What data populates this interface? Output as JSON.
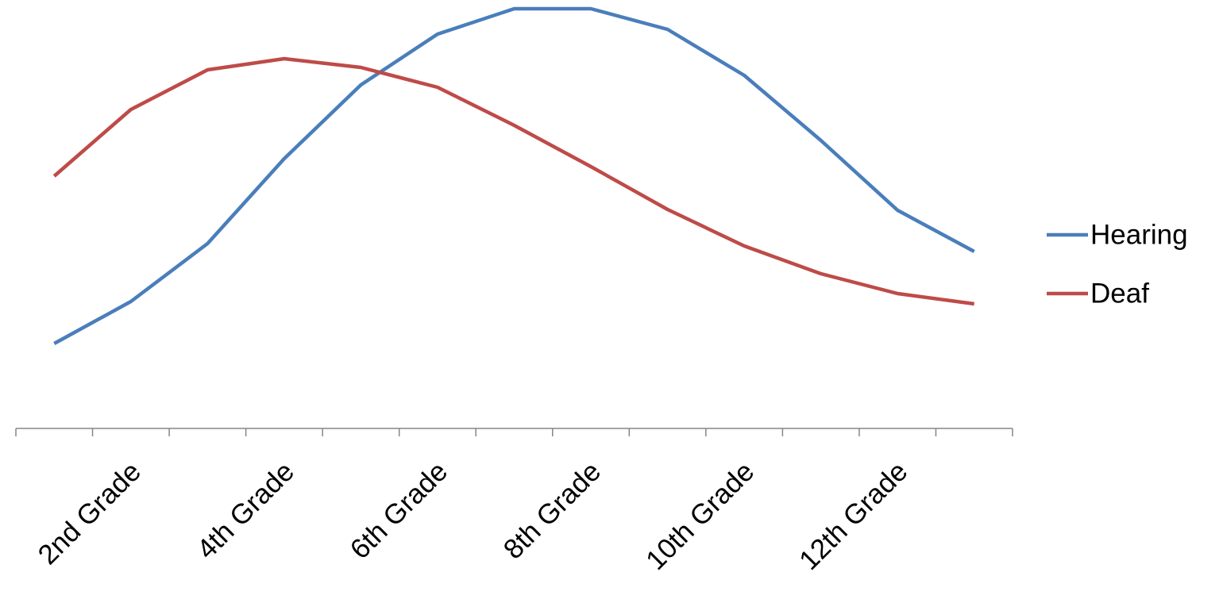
{
  "chart_data": {
    "type": "line",
    "categories": [
      null,
      "2nd Grade",
      null,
      "4th Grade",
      null,
      "6th Grade",
      null,
      "8th Grade",
      null,
      "10th Grade",
      null,
      "12th Grade",
      null
    ],
    "series": [
      {
        "name": "Hearing",
        "color": "#4a7ebb",
        "values": [
          107,
          160,
          233,
          340,
          433,
          497,
          529,
          529,
          503,
          445,
          363,
          275,
          223
        ]
      },
      {
        "name": "Deaf",
        "color": "#be4b48",
        "values": [
          318,
          402,
          452,
          466,
          455,
          430,
          382,
          330,
          276,
          230,
          195,
          170,
          157
        ]
      }
    ],
    "ylim": [
      0,
      540
    ],
    "legend": "right"
  }
}
